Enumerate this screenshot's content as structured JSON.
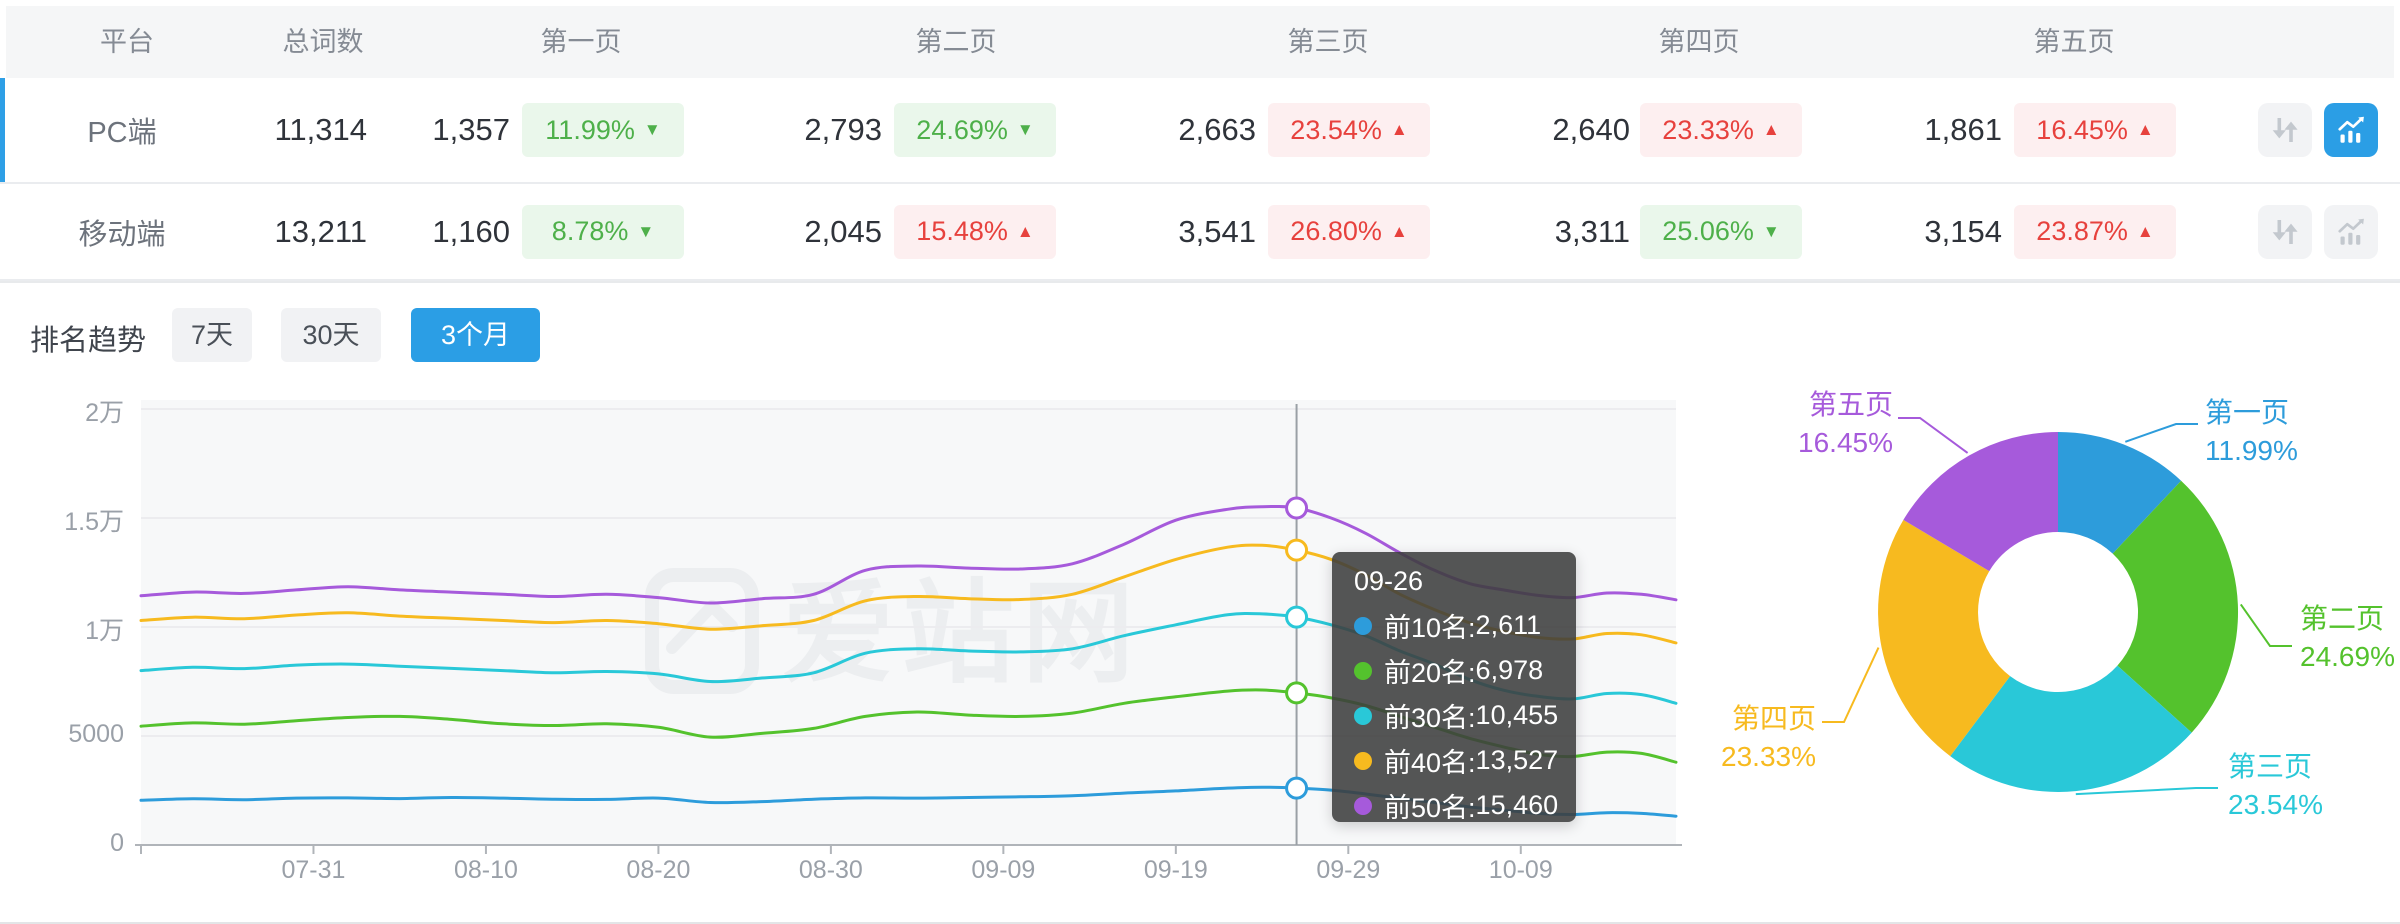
{
  "table": {
    "columns": [
      "平台",
      "总词数",
      "第一页",
      "第二页",
      "第三页",
      "第四页",
      "第五页"
    ],
    "rows": [
      {
        "platform": "PC端",
        "total": "11,314",
        "selected": true,
        "pages": [
          {
            "count": "1,357",
            "pct": "11.99%",
            "trend": "down"
          },
          {
            "count": "2,793",
            "pct": "24.69%",
            "trend": "down"
          },
          {
            "count": "2,663",
            "pct": "23.54%",
            "trend": "up"
          },
          {
            "count": "2,640",
            "pct": "23.33%",
            "trend": "up"
          },
          {
            "count": "1,861",
            "pct": "16.45%",
            "trend": "up"
          }
        ]
      },
      {
        "platform": "移动端",
        "total": "13,211",
        "selected": false,
        "pages": [
          {
            "count": "1,160",
            "pct": "8.78%",
            "trend": "down"
          },
          {
            "count": "2,045",
            "pct": "15.48%",
            "trend": "up"
          },
          {
            "count": "3,541",
            "pct": "26.80%",
            "trend": "up"
          },
          {
            "count": "3,311",
            "pct": "25.06%",
            "trend": "down"
          },
          {
            "count": "3,154",
            "pct": "23.87%",
            "trend": "up"
          }
        ]
      }
    ]
  },
  "trend": {
    "title": "排名趋势",
    "tabs": [
      {
        "label": "7天",
        "active": false
      },
      {
        "label": "30天",
        "active": false
      },
      {
        "label": "3个月",
        "active": true
      }
    ]
  },
  "watermark": {
    "text": "爱站网"
  },
  "colors": {
    "accent": "#2b9ee5",
    "selected_row_bar": "#2e9fe6",
    "badge_green": "#4eb04a",
    "badge_green_bg": "#eaf7eb",
    "badge_red": "#e7413d",
    "badge_red_bg": "#fdeff0",
    "series": [
      "#2d9cdb",
      "#54c22d",
      "#29c8d8",
      "#f7ba1f",
      "#a65adb"
    ]
  },
  "chart_data": [
    {
      "type": "line",
      "title": "排名趋势(3个月)",
      "x_ticks": [
        "07-31",
        "08-10",
        "08-20",
        "08-30",
        "09-09",
        "09-19",
        "09-29",
        "10-09"
      ],
      "x_tick_days": [
        10,
        20,
        30,
        40,
        50,
        60,
        70,
        80
      ],
      "days_total": 89,
      "ylim": [
        0,
        20000
      ],
      "grid": true,
      "y_ticks": [
        {
          "v": 0,
          "label": "0"
        },
        {
          "v": 5000,
          "label": "5000"
        },
        {
          "v": 10000,
          "label": "1万"
        },
        {
          "v": 15000,
          "label": "1.5万"
        },
        {
          "v": 20000,
          "label": "2万"
        }
      ],
      "crosshair": {
        "day": 67,
        "date": "09-26"
      },
      "series": [
        {
          "name": "前10名",
          "color": "#2d9cdb",
          "points": [
            [
              0,
              2050
            ],
            [
              3,
              2120
            ],
            [
              6,
              2080
            ],
            [
              9,
              2150
            ],
            [
              12,
              2160
            ],
            [
              15,
              2130
            ],
            [
              18,
              2180
            ],
            [
              21,
              2150
            ],
            [
              24,
              2100
            ],
            [
              27,
              2090
            ],
            [
              30,
              2150
            ],
            [
              33,
              1950
            ],
            [
              36,
              1990
            ],
            [
              39,
              2100
            ],
            [
              42,
              2160
            ],
            [
              45,
              2150
            ],
            [
              48,
              2180
            ],
            [
              51,
              2210
            ],
            [
              54,
              2260
            ],
            [
              57,
              2380
            ],
            [
              60,
              2480
            ],
            [
              63,
              2610
            ],
            [
              65,
              2650
            ],
            [
              67,
              2611
            ],
            [
              69,
              2520
            ],
            [
              71,
              2340
            ],
            [
              73,
              2140
            ],
            [
              75,
              1950
            ],
            [
              77,
              1750
            ],
            [
              79,
              1600
            ],
            [
              81,
              1450
            ],
            [
              83,
              1400
            ],
            [
              85,
              1480
            ],
            [
              87,
              1450
            ],
            [
              89,
              1320
            ]
          ]
        },
        {
          "name": "前20名",
          "color": "#54c22d",
          "points": [
            [
              0,
              5450
            ],
            [
              3,
              5600
            ],
            [
              6,
              5540
            ],
            [
              9,
              5700
            ],
            [
              12,
              5850
            ],
            [
              15,
              5900
            ],
            [
              18,
              5760
            ],
            [
              21,
              5560
            ],
            [
              24,
              5480
            ],
            [
              27,
              5560
            ],
            [
              30,
              5400
            ],
            [
              33,
              4950
            ],
            [
              36,
              5120
            ],
            [
              39,
              5350
            ],
            [
              42,
              5900
            ],
            [
              45,
              6100
            ],
            [
              48,
              5960
            ],
            [
              51,
              5900
            ],
            [
              54,
              6050
            ],
            [
              57,
              6500
            ],
            [
              60,
              6800
            ],
            [
              63,
              7060
            ],
            [
              65,
              7110
            ],
            [
              67,
              6978
            ],
            [
              69,
              6750
            ],
            [
              71,
              6400
            ],
            [
              73,
              5900
            ],
            [
              75,
              5400
            ],
            [
              77,
              4900
            ],
            [
              79,
              4500
            ],
            [
              81,
              4160
            ],
            [
              83,
              4060
            ],
            [
              85,
              4260
            ],
            [
              87,
              4200
            ],
            [
              89,
              3800
            ]
          ]
        },
        {
          "name": "前30名",
          "color": "#29c8d8",
          "points": [
            [
              0,
              8000
            ],
            [
              3,
              8150
            ],
            [
              6,
              8090
            ],
            [
              9,
              8250
            ],
            [
              12,
              8300
            ],
            [
              15,
              8200
            ],
            [
              18,
              8100
            ],
            [
              21,
              8000
            ],
            [
              24,
              7900
            ],
            [
              27,
              7960
            ],
            [
              30,
              7850
            ],
            [
              33,
              7500
            ],
            [
              36,
              7660
            ],
            [
              39,
              7900
            ],
            [
              42,
              8800
            ],
            [
              45,
              9000
            ],
            [
              48,
              8900
            ],
            [
              51,
              8860
            ],
            [
              54,
              9000
            ],
            [
              57,
              9600
            ],
            [
              60,
              10100
            ],
            [
              63,
              10560
            ],
            [
              65,
              10600
            ],
            [
              67,
              10455
            ],
            [
              69,
              10100
            ],
            [
              71,
              9600
            ],
            [
              73,
              8900
            ],
            [
              75,
              8300
            ],
            [
              77,
              7600
            ],
            [
              79,
              7100
            ],
            [
              81,
              6820
            ],
            [
              83,
              6700
            ],
            [
              85,
              6950
            ],
            [
              87,
              6900
            ],
            [
              89,
              6500
            ]
          ]
        },
        {
          "name": "前40名",
          "color": "#f7ba1f",
          "points": [
            [
              0,
              10300
            ],
            [
              3,
              10450
            ],
            [
              6,
              10380
            ],
            [
              9,
              10550
            ],
            [
              12,
              10650
            ],
            [
              15,
              10500
            ],
            [
              18,
              10400
            ],
            [
              21,
              10300
            ],
            [
              24,
              10200
            ],
            [
              27,
              10300
            ],
            [
              30,
              10150
            ],
            [
              33,
              9900
            ],
            [
              36,
              10060
            ],
            [
              39,
              10300
            ],
            [
              42,
              11200
            ],
            [
              45,
              11400
            ],
            [
              48,
              11300
            ],
            [
              51,
              11260
            ],
            [
              54,
              11500
            ],
            [
              57,
              12300
            ],
            [
              60,
              13100
            ],
            [
              63,
              13660
            ],
            [
              65,
              13750
            ],
            [
              67,
              13527
            ],
            [
              69,
              13100
            ],
            [
              71,
              12400
            ],
            [
              73,
              11500
            ],
            [
              75,
              10800
            ],
            [
              77,
              10200
            ],
            [
              79,
              9800
            ],
            [
              81,
              9520
            ],
            [
              83,
              9450
            ],
            [
              85,
              9700
            ],
            [
              87,
              9640
            ],
            [
              89,
              9270
            ]
          ]
        },
        {
          "name": "前50名",
          "color": "#a65adb",
          "points": [
            [
              0,
              11430
            ],
            [
              3,
              11600
            ],
            [
              6,
              11540
            ],
            [
              9,
              11700
            ],
            [
              12,
              11850
            ],
            [
              15,
              11700
            ],
            [
              18,
              11600
            ],
            [
              21,
              11500
            ],
            [
              24,
              11400
            ],
            [
              27,
              11500
            ],
            [
              30,
              11350
            ],
            [
              33,
              11100
            ],
            [
              36,
              11300
            ],
            [
              39,
              11500
            ],
            [
              42,
              12600
            ],
            [
              45,
              12800
            ],
            [
              48,
              12700
            ],
            [
              51,
              12660
            ],
            [
              54,
              12900
            ],
            [
              57,
              13800
            ],
            [
              60,
              14900
            ],
            [
              63,
              15400
            ],
            [
              65,
              15520
            ],
            [
              67,
              15460
            ],
            [
              69,
              15000
            ],
            [
              71,
              14300
            ],
            [
              73,
              13400
            ],
            [
              75,
              12600
            ],
            [
              77,
              12000
            ],
            [
              79,
              11700
            ],
            [
              81,
              11450
            ],
            [
              83,
              11350
            ],
            [
              85,
              11560
            ],
            [
              87,
              11500
            ],
            [
              89,
              11250
            ]
          ]
        }
      ],
      "tooltip": {
        "title": "09-26",
        "rows": [
          {
            "label": "前10名: ",
            "value": "2,611",
            "v": 2611
          },
          {
            "label": "前20名: ",
            "value": "6,978",
            "v": 6978
          },
          {
            "label": "前30名: ",
            "value": "10,455",
            "v": 10455
          },
          {
            "label": "前40名: ",
            "value": "13,527",
            "v": 13527
          },
          {
            "label": "前50名: ",
            "value": "15,460",
            "v": 15460
          }
        ]
      }
    },
    {
      "type": "donut",
      "labels": [
        {
          "name": "第一页",
          "pct": "11.99%"
        },
        {
          "name": "第二页",
          "pct": "24.69%"
        },
        {
          "name": "第三页",
          "pct": "23.54%"
        },
        {
          "name": "第四页",
          "pct": "23.33%"
        },
        {
          "name": "第五页",
          "pct": "16.45%"
        }
      ],
      "values": [
        11.99,
        24.69,
        23.54,
        23.33,
        16.45
      ],
      "colors": [
        "#2d9cdb",
        "#54c22d",
        "#29c8d8",
        "#f7ba1f",
        "#a65adb"
      ],
      "legend_position": "around"
    }
  ]
}
